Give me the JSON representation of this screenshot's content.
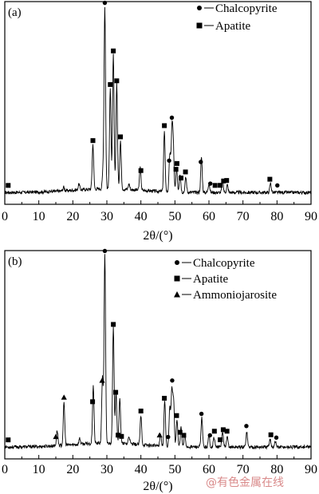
{
  "chart_data": [
    {
      "type": "line",
      "panel_label": "(a)",
      "xlabel": "2θ/(°)",
      "xlim": [
        0,
        90
      ],
      "x_ticks": [
        "0",
        "10",
        "20",
        "30",
        "40",
        "50",
        "60",
        "70",
        "80",
        "90"
      ],
      "grid": false,
      "legend_position": "top-right",
      "legend": [
        {
          "marker": "circle",
          "label": "Chalcopyrite"
        },
        {
          "marker": "square",
          "label": "Apatite"
        }
      ],
      "peaks": [
        {
          "x": 29.4,
          "h": 0.97
        },
        {
          "x": 31.9,
          "h": 0.72
        },
        {
          "x": 32.9,
          "h": 0.56
        },
        {
          "x": 31.0,
          "h": 0.54
        },
        {
          "x": 25.9,
          "h": 0.24
        },
        {
          "x": 34.0,
          "h": 0.26
        },
        {
          "x": 28.9,
          "h": 0.1
        },
        {
          "x": 39.8,
          "h": 0.12
        },
        {
          "x": 46.9,
          "h": 0.32
        },
        {
          "x": 48.5,
          "h": 0.2
        },
        {
          "x": 49.1,
          "h": 0.31
        },
        {
          "x": 49.5,
          "h": 0.25
        },
        {
          "x": 50.5,
          "h": 0.13
        },
        {
          "x": 51.5,
          "h": 0.1
        },
        {
          "x": 53.2,
          "h": 0.08
        },
        {
          "x": 57.8,
          "h": 0.19
        },
        {
          "x": 60.0,
          "h": 0.05
        },
        {
          "x": 64.0,
          "h": 0.06
        },
        {
          "x": 65.4,
          "h": 0.04
        },
        {
          "x": 21.8,
          "h": 0.03
        },
        {
          "x": 78.1,
          "h": 0.05
        },
        {
          "x": 17.3,
          "h": 0.02
        },
        {
          "x": 36.5,
          "h": 0.03
        }
      ],
      "markers": [
        {
          "x": 29.4,
          "type": "circle"
        },
        {
          "x": 25.9,
          "type": "square"
        },
        {
          "x": 31.0,
          "type": "square"
        },
        {
          "x": 31.9,
          "type": "square"
        },
        {
          "x": 32.9,
          "type": "square"
        },
        {
          "x": 34.0,
          "type": "square"
        },
        {
          "x": 40.0,
          "type": "square"
        },
        {
          "x": 46.9,
          "type": "square"
        },
        {
          "x": 48.3,
          "type": "circle"
        },
        {
          "x": 49.1,
          "type": "circle"
        },
        {
          "x": 50.3,
          "type": "square"
        },
        {
          "x": 50.6,
          "type": "square"
        },
        {
          "x": 51.8,
          "type": "square"
        },
        {
          "x": 53.1,
          "type": "square"
        },
        {
          "x": 57.6,
          "type": "circle"
        },
        {
          "x": 60.4,
          "type": "circle"
        },
        {
          "x": 61.8,
          "type": "square"
        },
        {
          "x": 63.3,
          "type": "square"
        },
        {
          "x": 64.3,
          "type": "square"
        },
        {
          "x": 65.2,
          "type": "square"
        },
        {
          "x": 1.0,
          "type": "square"
        },
        {
          "x": 77.9,
          "type": "square"
        },
        {
          "x": 80.1,
          "type": "circle"
        }
      ]
    },
    {
      "type": "line",
      "panel_label": "(b)",
      "xlabel": "2θ/(°)",
      "xlim": [
        0,
        90
      ],
      "x_ticks": [
        "0",
        "10",
        "20",
        "30",
        "40",
        "50",
        "60",
        "70",
        "80",
        "90"
      ],
      "grid": false,
      "legend_position": "top-right",
      "legend": [
        {
          "marker": "circle",
          "label": "Chalcopyrite"
        },
        {
          "marker": "square",
          "label": "Apatite"
        },
        {
          "marker": "triangle",
          "label": "Ammoniojarosite"
        }
      ],
      "peaks": [
        {
          "x": 29.4,
          "h": 0.98
        },
        {
          "x": 31.9,
          "h": 0.6
        },
        {
          "x": 32.7,
          "h": 0.27
        },
        {
          "x": 28.7,
          "h": 0.34
        },
        {
          "x": 26.0,
          "h": 0.3
        },
        {
          "x": 33.8,
          "h": 0.24
        },
        {
          "x": 17.4,
          "h": 0.22
        },
        {
          "x": 15.4,
          "h": 0.08
        },
        {
          "x": 40.0,
          "h": 0.15
        },
        {
          "x": 45.8,
          "h": 0.06
        },
        {
          "x": 47.0,
          "h": 0.24
        },
        {
          "x": 48.5,
          "h": 0.2
        },
        {
          "x": 49.1,
          "h": 0.29
        },
        {
          "x": 49.6,
          "h": 0.24
        },
        {
          "x": 50.6,
          "h": 0.14
        },
        {
          "x": 51.8,
          "h": 0.1
        },
        {
          "x": 52.9,
          "h": 0.06
        },
        {
          "x": 57.9,
          "h": 0.15
        },
        {
          "x": 60.0,
          "h": 0.06
        },
        {
          "x": 61.5,
          "h": 0.05
        },
        {
          "x": 64.0,
          "h": 0.08
        },
        {
          "x": 65.4,
          "h": 0.05
        },
        {
          "x": 71.1,
          "h": 0.08
        },
        {
          "x": 78.0,
          "h": 0.04
        },
        {
          "x": 79.5,
          "h": 0.03
        },
        {
          "x": 36.5,
          "h": 0.04
        },
        {
          "x": 22.0,
          "h": 0.03
        }
      ],
      "markers": [
        {
          "x": 29.4,
          "type": "circle"
        },
        {
          "x": 1.0,
          "type": "square"
        },
        {
          "x": 15.0,
          "type": "triangle"
        },
        {
          "x": 17.4,
          "type": "triangle"
        },
        {
          "x": 25.8,
          "type": "square"
        },
        {
          "x": 28.6,
          "type": "triangle"
        },
        {
          "x": 31.9,
          "type": "square"
        },
        {
          "x": 32.6,
          "type": "square"
        },
        {
          "x": 33.3,
          "type": "square"
        },
        {
          "x": 34.3,
          "type": "square"
        },
        {
          "x": 40.0,
          "type": "square"
        },
        {
          "x": 45.5,
          "type": "triangle"
        },
        {
          "x": 46.9,
          "type": "square"
        },
        {
          "x": 48.0,
          "type": "circle"
        },
        {
          "x": 49.2,
          "type": "circle"
        },
        {
          "x": 50.5,
          "type": "square"
        },
        {
          "x": 51.5,
          "type": "square"
        },
        {
          "x": 52.6,
          "type": "square"
        },
        {
          "x": 57.8,
          "type": "circle"
        },
        {
          "x": 60.3,
          "type": "circle"
        },
        {
          "x": 61.6,
          "type": "square"
        },
        {
          "x": 63.3,
          "type": "square"
        },
        {
          "x": 64.2,
          "type": "square"
        },
        {
          "x": 65.3,
          "type": "square"
        },
        {
          "x": 71.0,
          "type": "circle"
        },
        {
          "x": 78.2,
          "type": "square"
        },
        {
          "x": 79.8,
          "type": "circle"
        }
      ]
    }
  ],
  "watermark": "@有色金属在线"
}
